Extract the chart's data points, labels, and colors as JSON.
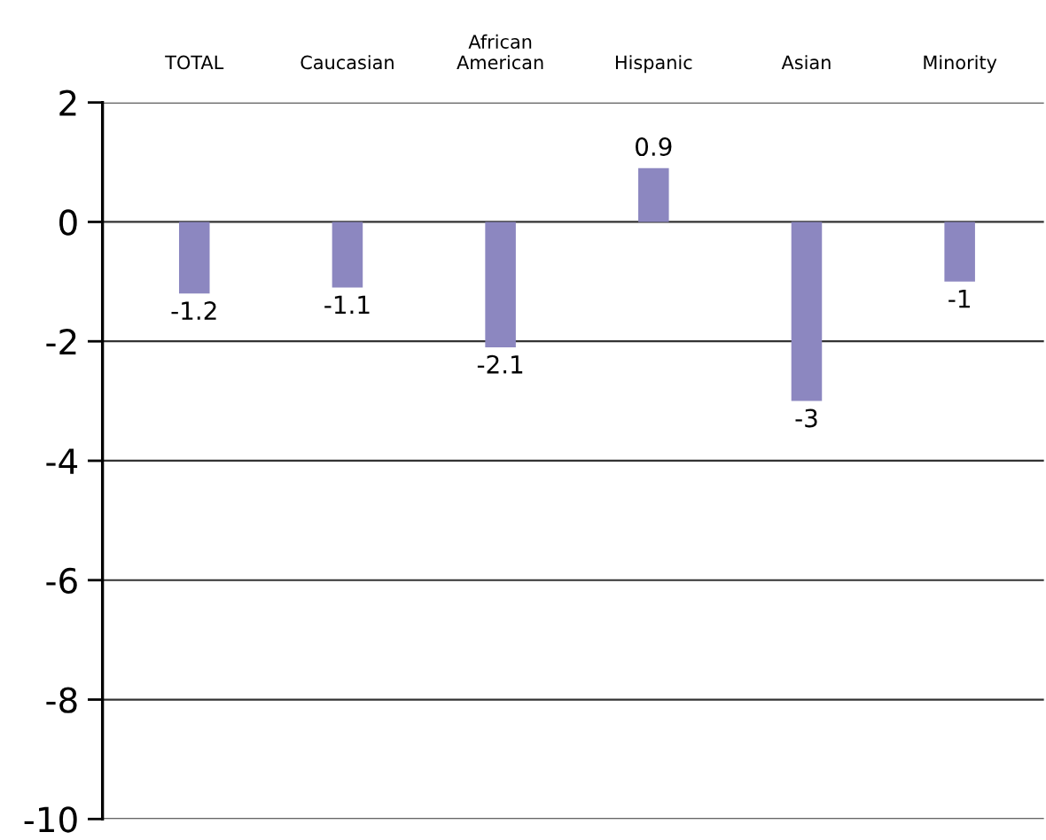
{
  "chart_data": {
    "type": "bar",
    "categories": [
      "TOTAL",
      "Caucasian",
      "African\nAmerican",
      "Hispanic",
      "Asian",
      "Minority"
    ],
    "values": [
      -1.2,
      -1.1,
      -2.1,
      0.9,
      -3,
      -1
    ],
    "value_labels": [
      "-1.2",
      "-1.1",
      "-2.1",
      "0.9",
      "-3",
      "-1"
    ],
    "color": "#8c87c0",
    "ylim": [
      -10,
      2
    ],
    "yticks": [
      -10,
      -8,
      -6,
      -4,
      -2,
      0,
      2
    ],
    "grid": "y"
  }
}
